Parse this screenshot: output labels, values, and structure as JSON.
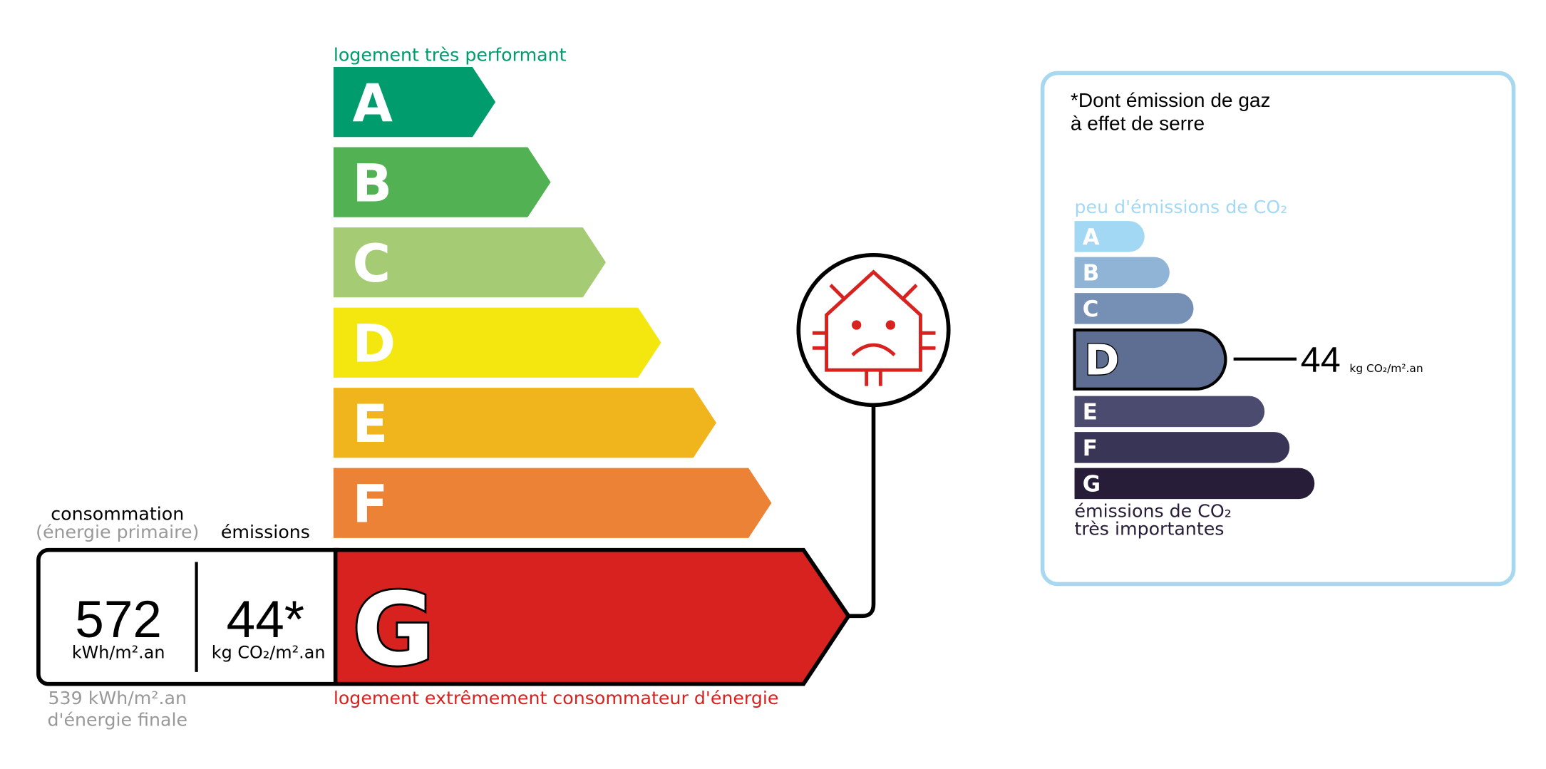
{
  "energy": {
    "top_label": "logement très performant",
    "bottom_label": "logement extrêmement consommateur d'énergie",
    "classes": [
      "A",
      "B",
      "C",
      "D",
      "E",
      "F",
      "G"
    ],
    "consumption_header": "consommation",
    "consumption_subheader": "(énergie primaire)",
    "emissions_header": "émissions",
    "consumption_value": "572",
    "consumption_unit": "kWh/m².an",
    "emissions_value": "44*",
    "emissions_unit": "kg CO₂/m².an",
    "final_energy_value": "539 kWh/m².an",
    "final_energy_label": "d'énergie finale"
  },
  "ghg": {
    "title_line1": "*Dont émission de gaz",
    "title_line2": "à effet de serre",
    "top_label": "peu d'émissions de CO₂",
    "classes": [
      "A",
      "B",
      "C",
      "D",
      "E",
      "F",
      "G"
    ],
    "value": "44",
    "unit": "kg CO₂/m².an",
    "bottom_label_line1": "émissions de CO₂",
    "bottom_label_line2": "très importantes"
  }
}
